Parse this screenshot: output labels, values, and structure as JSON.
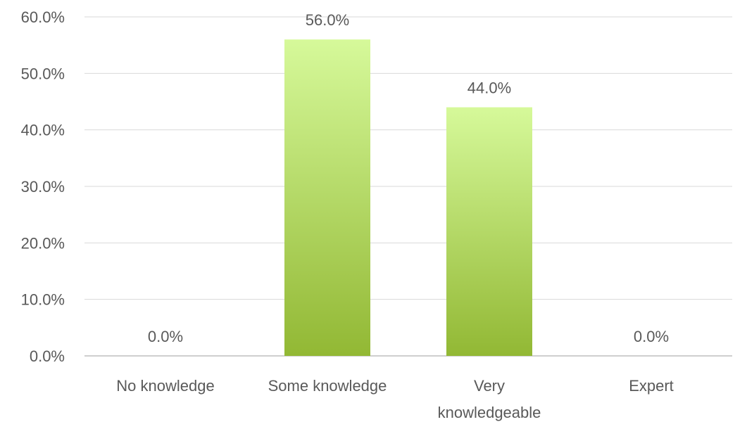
{
  "chart_data": {
    "type": "bar",
    "categories": [
      "No knowledge",
      "Some knowledge",
      "Very knowledgeable",
      "Expert"
    ],
    "category_lines": [
      [
        "No knowledge"
      ],
      [
        "Some knowledge"
      ],
      [
        "Very",
        "knowledgeable"
      ],
      [
        "Expert"
      ]
    ],
    "values": [
      0.0,
      56.0,
      44.0,
      0.0
    ],
    "data_labels": [
      "0.0%",
      "56.0%",
      "44.0%",
      "0.0%"
    ],
    "ylim": [
      0,
      60
    ],
    "yticks": [
      0,
      10,
      20,
      30,
      40,
      50,
      60
    ],
    "ytick_labels": [
      "0.0%",
      "10.0%",
      "20.0%",
      "30.0%",
      "40.0%",
      "50.0%",
      "60.0%"
    ],
    "grid": true,
    "legend": "none",
    "bar_gradient": [
      "#d6f99a",
      "#92b834"
    ],
    "title": "",
    "xlabel": "",
    "ylabel": ""
  }
}
